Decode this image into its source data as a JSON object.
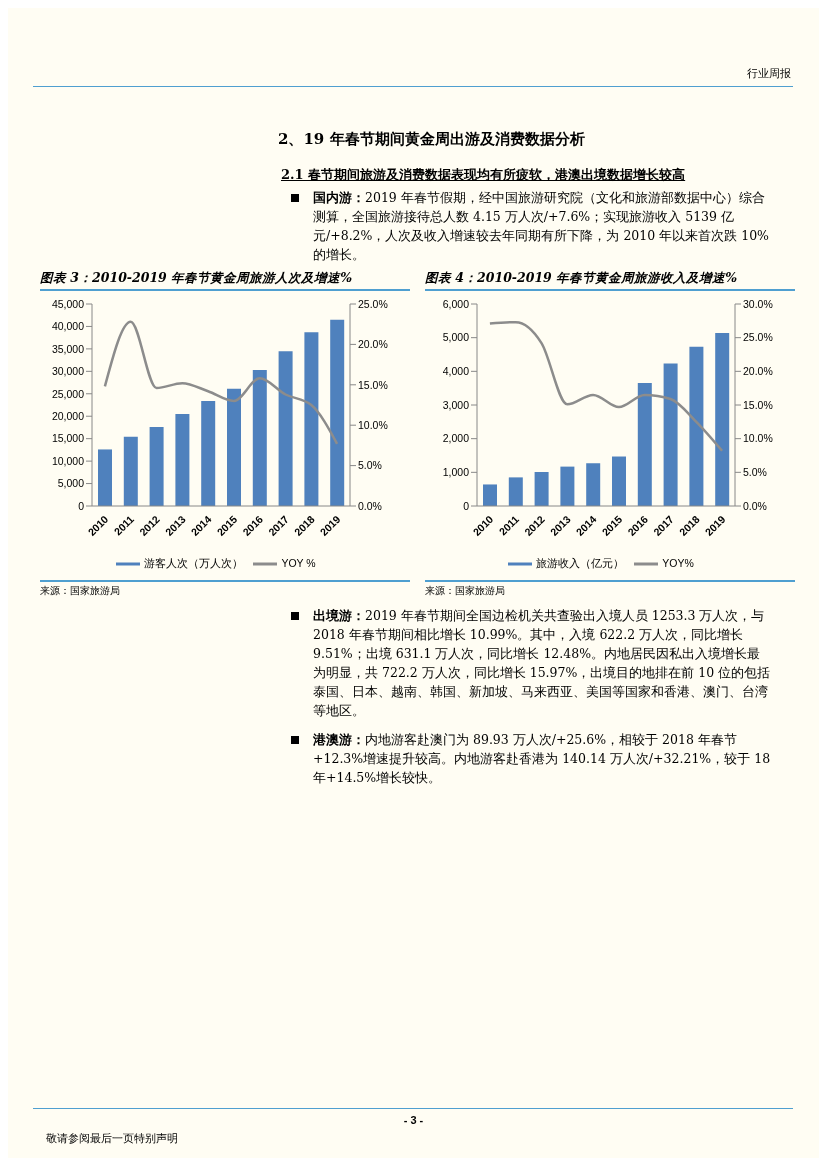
{
  "chart_data": [
    {
      "type": "bar",
      "title": "图表 3：2010-2019 年春节黄金周旅游人次及增速%",
      "categories": [
        "2010",
        "2011",
        "2012",
        "2013",
        "2014",
        "2015",
        "2016",
        "2017",
        "2018",
        "2019"
      ],
      "series": [
        {
          "name": "游客人次（万人次）",
          "color": "#4f81bd",
          "values": [
            12600,
            15400,
            17600,
            20500,
            23400,
            26100,
            30300,
            34500,
            38700,
            41500
          ]
        },
        {
          "name": "YOY %",
          "type": "line",
          "axis": "y2",
          "color": "#8c8c8c",
          "values": [
            14.8,
            22.8,
            14.6,
            15.2,
            14.2,
            13.0,
            15.8,
            13.8,
            12.5,
            7.7
          ]
        }
      ],
      "ylim": [
        0,
        45000
      ],
      "yticks": [
        0,
        {
          "value": 5000,
          "label": "5,000"
        },
        {
          "value": 10000,
          "label": "10,000"
        },
        {
          "value": 15000,
          "label": "15,000"
        },
        {
          "value": 20000,
          "label": "20,000"
        },
        {
          "value": 25000,
          "label": "25,000"
        },
        {
          "value": 30000,
          "label": "30,000"
        },
        {
          "value": 35000,
          "label": "35,000"
        },
        {
          "value": 40000,
          "label": "40,000"
        },
        {
          "value": 45000,
          "label": "45,000"
        }
      ],
      "y2lim": [
        0,
        25
      ],
      "y2ticks": [
        {
          "value": 0,
          "label": "0.0%"
        },
        {
          "value": 5,
          "label": "5.0%"
        },
        {
          "value": 10,
          "label": "10.0%"
        },
        {
          "value": 15,
          "label": "15.0%"
        },
        {
          "value": 20,
          "label": "20.0%"
        },
        {
          "value": 25,
          "label": "25.0%"
        }
      ],
      "legend": "bottom",
      "annotations": [
        "行业周报",
        "2、19 年春节期间黄金周出游及消费数据分析",
        "2.1 春节期间旅游及消费数据表现均有所疲软，港澳出境数据增长较高",
        "国内游：2019 年春节假期，经中国旅游研究院（文化和旅游部数据中心）综合测算，全国旅游接待总人数 4.15 万人次/+7.6%；实现旅游收入 5139 亿元/+8.2%，人次及收入增速较去年同期有所下降，为 2010 年以来首次跌 10%的增长。",
        "来源：国家旅游局"
      ]
    },
    {
      "type": "bar",
      "title": "图表 4：2010-2019 年春节黄金周旅游收入及增速%",
      "categories": [
        "2010",
        "2011",
        "2012",
        "2013",
        "2014",
        "2015",
        "2016",
        "2017",
        "2018",
        "2019"
      ],
      "series": [
        {
          "name": "旅游收入（亿元）",
          "color": "#4f81bd",
          "values": [
            640,
            850,
            1010,
            1170,
            1270,
            1470,
            3650,
            4230,
            4730,
            5140
          ]
        },
        {
          "name": "YOY%",
          "type": "line",
          "axis": "y2",
          "color": "#8c8c8c",
          "values": [
            27.1,
            27.3,
            24.2,
            15.1,
            16.5,
            14.7,
            16.5,
            15.9,
            12.5,
            8.2
          ]
        }
      ],
      "ylim": [
        0,
        6000
      ],
      "yticks": [
        0,
        {
          "value": 1000,
          "label": "1,000"
        },
        {
          "value": 2000,
          "label": "2,000"
        },
        {
          "value": 3000,
          "label": "3,000"
        },
        {
          "value": 4000,
          "label": "4,000"
        },
        {
          "value": 5000,
          "label": "5,000"
        },
        {
          "value": 6000,
          "label": "6,000"
        }
      ],
      "y2lim": [
        0,
        30
      ],
      "y2ticks": [
        {
          "value": 0,
          "label": "0.0%"
        },
        {
          "value": 5,
          "label": "5.0%"
        },
        {
          "value": 10,
          "label": "10.0%"
        },
        {
          "value": 15,
          "label": "15.0%"
        },
        {
          "value": 20,
          "label": "20.0%"
        },
        {
          "value": 25,
          "label": "25.0%"
        },
        {
          "value": 30,
          "label": "30.0%"
        }
      ],
      "legend": "bottom",
      "annotations": [
        "来源：国家旅游局",
        "出境游：2019 年春节期间全国边检机关共查验出入境人员 1253.3 万人次，与 2018 年春节期间相比增长 10.99%。其中，入境 622.2 万人次，同比增长 9.51%；出境 631.1 万人次，同比增长 12.48%。内地居民因私出入境增长最为明显，共 722.2 万人次，同比增长 15.97%，出境目的地排在前 10 位的包括泰国、日本、越南、韩国、新加坡、马来西亚、美国等国家和香港、澳门、台湾等地区。",
        "港澳游：内地游客赴澳门为 89.93 万人次/+25.6%，相较于 2018 年春节+12.3%增速提升较高。内地游客赴香港为 140.14 万人次/+32.21%，较于 18 年+14.5%增长较快。",
        "- 3 -",
        "敬请参阅最后一页特别声明"
      ]
    }
  ]
}
